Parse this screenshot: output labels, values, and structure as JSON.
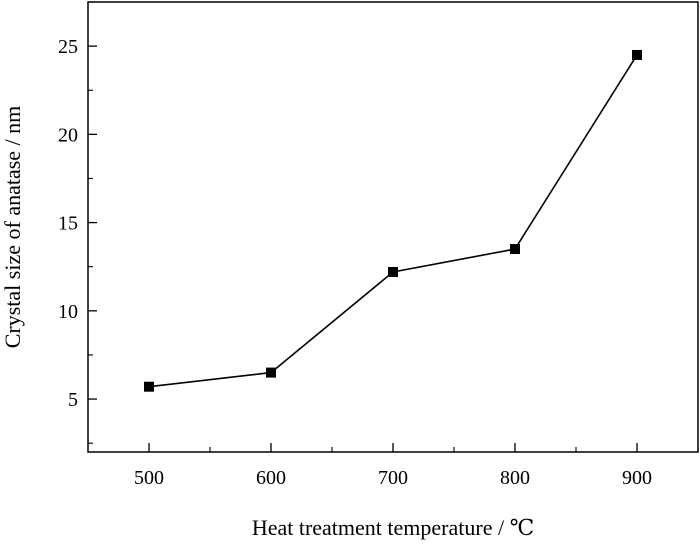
{
  "chart_data": {
    "type": "line",
    "title": "",
    "xlabel": "Heat treatment temperature / ℃",
    "ylabel": "Crystal size of anatase / nm",
    "x": [
      500,
      600,
      700,
      800,
      900
    ],
    "series": [
      {
        "values": [
          5.7,
          6.5,
          12.2,
          13.5,
          24.5
        ]
      }
    ],
    "xlim": [
      450,
      950
    ],
    "ylim": [
      2,
      27.5
    ],
    "xticks": [
      500,
      600,
      700,
      800,
      900
    ],
    "xtick_labels": [
      "500",
      "600",
      "700",
      "800",
      "900"
    ],
    "yticks": [
      5,
      10,
      15,
      20,
      25
    ],
    "ytick_labels": [
      "5",
      "10",
      "15",
      "20",
      "25"
    ],
    "grid": false,
    "marker": "square",
    "line_color": "#000000",
    "marker_color": "#000000"
  }
}
